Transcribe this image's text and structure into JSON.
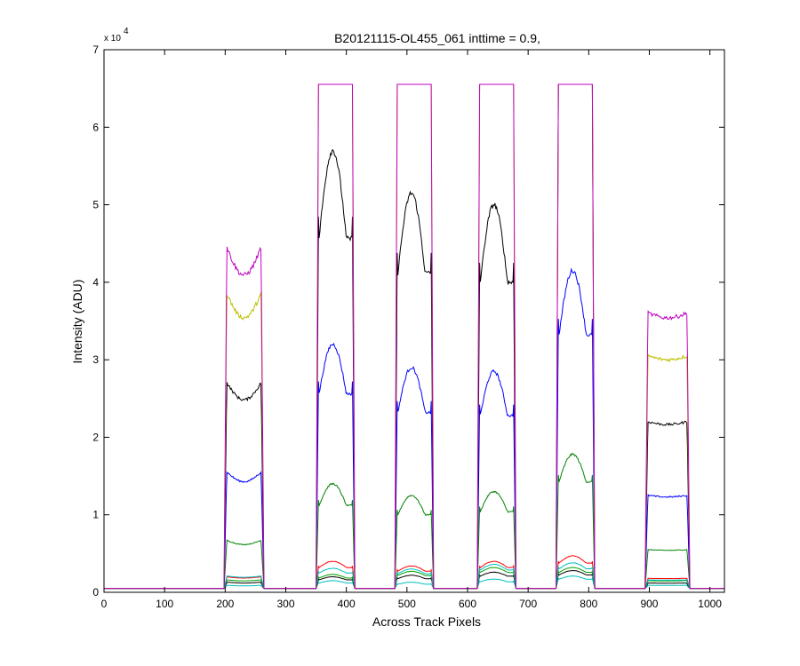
{
  "chart_data": {
    "type": "line",
    "title": "B20121115-OL455_061 inttime = 0.9,",
    "xlabel": "Across Track Pixels",
    "ylabel": "Intensity (ADU)",
    "y_exponent_label": "x 10",
    "y_exponent_power": "4",
    "xlim": [
      0,
      1024
    ],
    "ylim": [
      0,
      70000
    ],
    "y_scale": 10000,
    "xticks": [
      0,
      100,
      200,
      300,
      400,
      500,
      600,
      700,
      800,
      900,
      1000
    ],
    "yticks": [
      0,
      1,
      2,
      3,
      4,
      5,
      6,
      7
    ],
    "grid": false,
    "baseline": 500,
    "saturation": 65535,
    "segments": [
      {
        "start": 200,
        "end": 262
      },
      {
        "start": 352,
        "end": 412
      },
      {
        "start": 482,
        "end": 542
      },
      {
        "start": 618,
        "end": 678
      },
      {
        "start": 748,
        "end": 808
      },
      {
        "start": 895,
        "end": 965
      }
    ],
    "series": [
      {
        "color": "#00bfbf",
        "plateaus": [
          900,
          1500,
          1300,
          1700,
          2100,
          900
        ]
      },
      {
        "color": "#000000",
        "plateaus": [
          1300,
          2000,
          2200,
          2600,
          2800,
          1200
        ]
      },
      {
        "color": "#00a000",
        "plateaus": [
          1600,
          2300,
          2700,
          3200,
          3200,
          1500
        ]
      },
      {
        "color": "#ff0000",
        "plateaus": [
          2000,
          4000,
          3400,
          4000,
          4700,
          1800
        ]
      },
      {
        "color": "#00bfbf",
        "plateaus": [
          2100,
          3100,
          3000,
          3600,
          3800,
          1600
        ]
      },
      {
        "color": "#008000",
        "plateaus": [
          6700,
          14000,
          12500,
          13000,
          17800,
          5500
        ]
      },
      {
        "color": "#0000ff",
        "plateaus": [
          15500,
          32000,
          29000,
          28500,
          41500,
          12500
        ]
      },
      {
        "color": "#000000",
        "plateaus": [
          27000,
          57000,
          51500,
          50000,
          65535,
          22000
        ]
      },
      {
        "color": "#bfbf00",
        "plateaus": [
          38500,
          65535,
          65535,
          65535,
          65535,
          30500
        ]
      },
      {
        "color": "#bf00bf",
        "plateaus": [
          44500,
          65535,
          65535,
          65535,
          65535,
          36000
        ]
      }
    ]
  }
}
